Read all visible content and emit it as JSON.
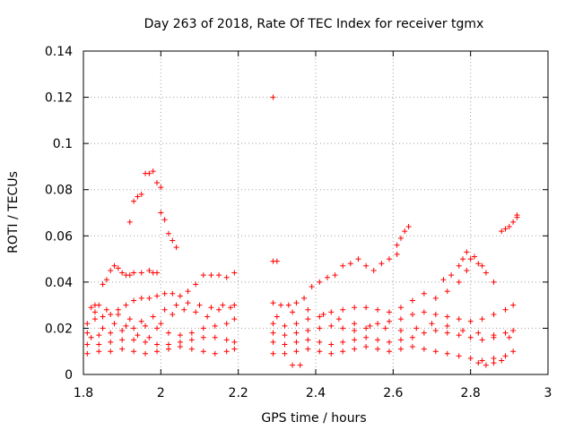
{
  "chart_data": {
    "type": "scatter",
    "title": "Day 263 of 2018, Rate Of TEC Index for receiver tgmx",
    "xlabel": "GPS time / hours",
    "ylabel": "ROTI / TECUs",
    "xlim": [
      1.8,
      3.0
    ],
    "ylim": [
      0,
      0.14
    ],
    "grid": true,
    "marker": "+",
    "marker_color": "#ff0000",
    "x_ticks": [
      "1.8",
      "2",
      "2.2",
      "2.4",
      "2.6",
      "2.8",
      "3"
    ],
    "y_ticks": [
      "0",
      "0.02",
      "0.04",
      "0.06",
      "0.08",
      "0.1",
      "0.12",
      "0.14"
    ],
    "series": [
      {
        "name": "ROTI",
        "points": [
          [
            1.96,
            0.087
          ],
          [
            1.97,
            0.087
          ],
          [
            1.98,
            0.088
          ],
          [
            1.99,
            0.083
          ],
          [
            2.0,
            0.081
          ],
          [
            2.0,
            0.07
          ],
          [
            2.01,
            0.067
          ],
          [
            2.02,
            0.061
          ],
          [
            2.03,
            0.058
          ],
          [
            2.04,
            0.055
          ],
          [
            1.92,
            0.066
          ],
          [
            1.93,
            0.075
          ],
          [
            1.94,
            0.077
          ],
          [
            1.95,
            0.078
          ],
          [
            1.82,
            0.029
          ],
          [
            1.83,
            0.03
          ],
          [
            1.84,
            0.03
          ],
          [
            1.85,
            0.039
          ],
          [
            1.86,
            0.041
          ],
          [
            1.87,
            0.045
          ],
          [
            1.88,
            0.047
          ],
          [
            1.89,
            0.046
          ],
          [
            1.9,
            0.044
          ],
          [
            1.91,
            0.043
          ],
          [
            1.92,
            0.043
          ],
          [
            1.93,
            0.044
          ],
          [
            1.95,
            0.044
          ],
          [
            1.97,
            0.045
          ],
          [
            1.98,
            0.044
          ],
          [
            1.99,
            0.044
          ],
          [
            1.81,
            0.022
          ],
          [
            1.83,
            0.024
          ],
          [
            1.85,
            0.025
          ],
          [
            1.87,
            0.026
          ],
          [
            1.89,
            0.028
          ],
          [
            1.91,
            0.03
          ],
          [
            1.93,
            0.032
          ],
          [
            1.95,
            0.033
          ],
          [
            1.97,
            0.033
          ],
          [
            1.99,
            0.034
          ],
          [
            2.01,
            0.035
          ],
          [
            2.03,
            0.035
          ],
          [
            2.05,
            0.034
          ],
          [
            2.07,
            0.036
          ],
          [
            2.09,
            0.039
          ],
          [
            2.11,
            0.043
          ],
          [
            2.13,
            0.043
          ],
          [
            2.15,
            0.043
          ],
          [
            2.17,
            0.042
          ],
          [
            2.19,
            0.044
          ],
          [
            1.81,
            0.018
          ],
          [
            1.84,
            0.017
          ],
          [
            1.87,
            0.018
          ],
          [
            1.9,
            0.019
          ],
          [
            1.93,
            0.02
          ],
          [
            1.96,
            0.021
          ],
          [
            1.99,
            0.02
          ],
          [
            2.02,
            0.018
          ],
          [
            2.05,
            0.017
          ],
          [
            2.08,
            0.018
          ],
          [
            2.11,
            0.02
          ],
          [
            2.14,
            0.021
          ],
          [
            2.17,
            0.022
          ],
          [
            2.19,
            0.024
          ],
          [
            1.81,
            0.013
          ],
          [
            1.84,
            0.013
          ],
          [
            1.87,
            0.014
          ],
          [
            1.9,
            0.015
          ],
          [
            1.93,
            0.015
          ],
          [
            1.96,
            0.014
          ],
          [
            1.99,
            0.013
          ],
          [
            2.02,
            0.013
          ],
          [
            2.05,
            0.014
          ],
          [
            2.08,
            0.015
          ],
          [
            2.11,
            0.016
          ],
          [
            2.14,
            0.016
          ],
          [
            2.17,
            0.015
          ],
          [
            2.19,
            0.014
          ],
          [
            1.81,
            0.009
          ],
          [
            1.84,
            0.01
          ],
          [
            1.87,
            0.01
          ],
          [
            1.9,
            0.011
          ],
          [
            1.93,
            0.01
          ],
          [
            1.96,
            0.009
          ],
          [
            1.99,
            0.01
          ],
          [
            2.02,
            0.011
          ],
          [
            2.05,
            0.012
          ],
          [
            2.08,
            0.011
          ],
          [
            2.11,
            0.01
          ],
          [
            2.14,
            0.009
          ],
          [
            2.17,
            0.01
          ],
          [
            2.19,
            0.011
          ],
          [
            1.82,
            0.016
          ],
          [
            1.85,
            0.02
          ],
          [
            1.88,
            0.022
          ],
          [
            1.91,
            0.021
          ],
          [
            1.94,
            0.017
          ],
          [
            1.97,
            0.016
          ],
          [
            2.0,
            0.022
          ],
          [
            2.03,
            0.026
          ],
          [
            2.06,
            0.028
          ],
          [
            2.09,
            0.027
          ],
          [
            2.12,
            0.025
          ],
          [
            2.15,
            0.028
          ],
          [
            2.18,
            0.029
          ],
          [
            1.83,
            0.027
          ],
          [
            1.86,
            0.028
          ],
          [
            1.89,
            0.026
          ],
          [
            1.92,
            0.024
          ],
          [
            1.95,
            0.023
          ],
          [
            1.98,
            0.025
          ],
          [
            2.01,
            0.028
          ],
          [
            2.04,
            0.03
          ],
          [
            2.07,
            0.031
          ],
          [
            2.1,
            0.03
          ],
          [
            2.13,
            0.029
          ],
          [
            2.16,
            0.03
          ],
          [
            2.19,
            0.03
          ],
          [
            2.29,
            0.12
          ],
          [
            2.29,
            0.049
          ],
          [
            2.3,
            0.049
          ],
          [
            2.29,
            0.031
          ],
          [
            2.31,
            0.03
          ],
          [
            2.33,
            0.03
          ],
          [
            2.35,
            0.031
          ],
          [
            2.37,
            0.033
          ],
          [
            2.39,
            0.038
          ],
          [
            2.41,
            0.04
          ],
          [
            2.43,
            0.042
          ],
          [
            2.45,
            0.043
          ],
          [
            2.47,
            0.047
          ],
          [
            2.49,
            0.048
          ],
          [
            2.51,
            0.05
          ],
          [
            2.53,
            0.047
          ],
          [
            2.55,
            0.045
          ],
          [
            2.57,
            0.048
          ],
          [
            2.59,
            0.05
          ],
          [
            2.61,
            0.052
          ],
          [
            2.61,
            0.056
          ],
          [
            2.62,
            0.059
          ],
          [
            2.63,
            0.062
          ],
          [
            2.64,
            0.064
          ],
          [
            2.29,
            0.022
          ],
          [
            2.32,
            0.021
          ],
          [
            2.35,
            0.022
          ],
          [
            2.38,
            0.024
          ],
          [
            2.41,
            0.025
          ],
          [
            2.44,
            0.027
          ],
          [
            2.47,
            0.028
          ],
          [
            2.5,
            0.029
          ],
          [
            2.53,
            0.029
          ],
          [
            2.56,
            0.028
          ],
          [
            2.59,
            0.027
          ],
          [
            2.62,
            0.029
          ],
          [
            2.65,
            0.032
          ],
          [
            2.68,
            0.035
          ],
          [
            2.71,
            0.033
          ],
          [
            2.74,
            0.036
          ],
          [
            2.77,
            0.04
          ],
          [
            2.79,
            0.045
          ],
          [
            2.8,
            0.05
          ],
          [
            2.82,
            0.048
          ],
          [
            2.84,
            0.044
          ],
          [
            2.86,
            0.04
          ],
          [
            2.29,
            0.018
          ],
          [
            2.32,
            0.017
          ],
          [
            2.35,
            0.018
          ],
          [
            2.38,
            0.019
          ],
          [
            2.41,
            0.02
          ],
          [
            2.44,
            0.021
          ],
          [
            2.47,
            0.02
          ],
          [
            2.5,
            0.019
          ],
          [
            2.53,
            0.02
          ],
          [
            2.56,
            0.022
          ],
          [
            2.59,
            0.023
          ],
          [
            2.62,
            0.024
          ],
          [
            2.65,
            0.026
          ],
          [
            2.68,
            0.027
          ],
          [
            2.71,
            0.026
          ],
          [
            2.74,
            0.025
          ],
          [
            2.77,
            0.024
          ],
          [
            2.8,
            0.023
          ],
          [
            2.83,
            0.024
          ],
          [
            2.86,
            0.026
          ],
          [
            2.89,
            0.028
          ],
          [
            2.91,
            0.03
          ],
          [
            2.29,
            0.014
          ],
          [
            2.32,
            0.013
          ],
          [
            2.35,
            0.014
          ],
          [
            2.38,
            0.015
          ],
          [
            2.41,
            0.014
          ],
          [
            2.44,
            0.013
          ],
          [
            2.47,
            0.014
          ],
          [
            2.5,
            0.015
          ],
          [
            2.53,
            0.016
          ],
          [
            2.56,
            0.015
          ],
          [
            2.59,
            0.014
          ],
          [
            2.62,
            0.015
          ],
          [
            2.65,
            0.016
          ],
          [
            2.68,
            0.018
          ],
          [
            2.71,
            0.019
          ],
          [
            2.74,
            0.018
          ],
          [
            2.77,
            0.017
          ],
          [
            2.8,
            0.016
          ],
          [
            2.83,
            0.015
          ],
          [
            2.86,
            0.016
          ],
          [
            2.89,
            0.018
          ],
          [
            2.91,
            0.019
          ],
          [
            2.29,
            0.009
          ],
          [
            2.32,
            0.009
          ],
          [
            2.35,
            0.01
          ],
          [
            2.38,
            0.011
          ],
          [
            2.41,
            0.01
          ],
          [
            2.44,
            0.009
          ],
          [
            2.47,
            0.01
          ],
          [
            2.5,
            0.011
          ],
          [
            2.53,
            0.012
          ],
          [
            2.56,
            0.011
          ],
          [
            2.59,
            0.01
          ],
          [
            2.62,
            0.011
          ],
          [
            2.65,
            0.012
          ],
          [
            2.68,
            0.011
          ],
          [
            2.71,
            0.01
          ],
          [
            2.74,
            0.009
          ],
          [
            2.77,
            0.008
          ],
          [
            2.8,
            0.007
          ],
          [
            2.83,
            0.006
          ],
          [
            2.86,
            0.007
          ],
          [
            2.89,
            0.008
          ],
          [
            2.91,
            0.01
          ],
          [
            2.3,
            0.025
          ],
          [
            2.34,
            0.027
          ],
          [
            2.38,
            0.028
          ],
          [
            2.42,
            0.026
          ],
          [
            2.46,
            0.024
          ],
          [
            2.5,
            0.022
          ],
          [
            2.54,
            0.021
          ],
          [
            2.58,
            0.02
          ],
          [
            2.62,
            0.019
          ],
          [
            2.66,
            0.02
          ],
          [
            2.7,
            0.022
          ],
          [
            2.74,
            0.021
          ],
          [
            2.78,
            0.019
          ],
          [
            2.82,
            0.018
          ],
          [
            2.86,
            0.017
          ],
          [
            2.9,
            0.016
          ],
          [
            2.88,
            0.062
          ],
          [
            2.89,
            0.063
          ],
          [
            2.9,
            0.064
          ],
          [
            2.91,
            0.066
          ],
          [
            2.92,
            0.068
          ],
          [
            2.92,
            0.069
          ],
          [
            2.73,
            0.041
          ],
          [
            2.75,
            0.043
          ],
          [
            2.77,
            0.047
          ],
          [
            2.78,
            0.05
          ],
          [
            2.79,
            0.053
          ],
          [
            2.81,
            0.051
          ],
          [
            2.83,
            0.047
          ],
          [
            2.82,
            0.005
          ],
          [
            2.84,
            0.004
          ],
          [
            2.86,
            0.005
          ],
          [
            2.88,
            0.006
          ],
          [
            2.34,
            0.004
          ],
          [
            2.36,
            0.004
          ]
        ]
      }
    ]
  }
}
